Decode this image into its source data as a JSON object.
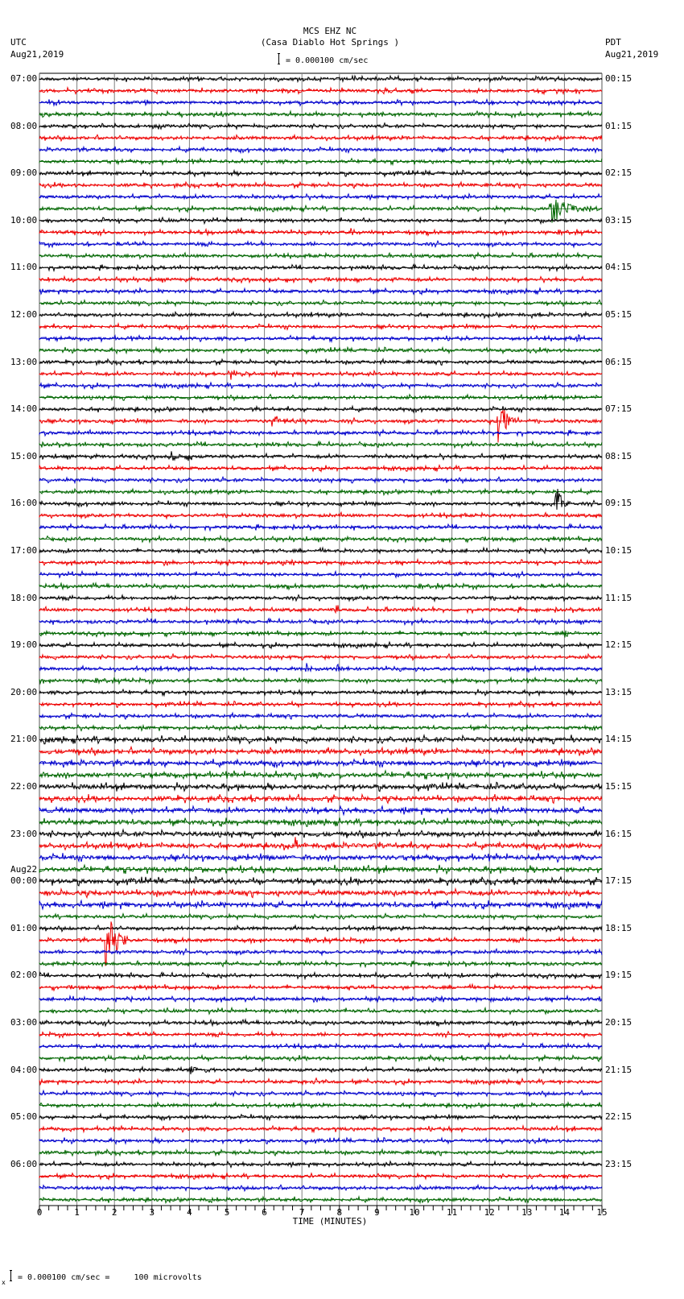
{
  "header": {
    "station": "MCS EHZ NC",
    "location": "(Casa Diablo Hot Springs )",
    "scale_text": "= 0.000100 cm/sec",
    "left_tz": "UTC",
    "left_date": "Aug21,2019",
    "right_tz": "PDT",
    "right_date": "Aug21,2019"
  },
  "footer": {
    "scale_text": "= 0.000100 cm/sec =     100 microvolts",
    "prefix": "x"
  },
  "colors": {
    "trace_cycle": [
      "#000000",
      "#ee0000",
      "#0000cc",
      "#006600"
    ],
    "grid": "#808080",
    "axis": "#000000"
  },
  "chart_data": {
    "type": "line",
    "title": "MCS EHZ NC (Casa Diablo Hot Springs )",
    "subtitle": "= 0.000100 cm/sec",
    "xlabel": "TIME (MINUTES)",
    "ylabel": "",
    "xlim": [
      0,
      15
    ],
    "x_ticks": [
      0,
      1,
      2,
      3,
      4,
      5,
      6,
      7,
      8,
      9,
      10,
      11,
      12,
      13,
      14,
      15
    ],
    "minor_ticks_per_minute": 4,
    "grid": "vertical lines every minute",
    "traces_per_hour": 4,
    "trace_minutes": 15,
    "left_labels_utc": [
      {
        "row": 0,
        "text": "07:00"
      },
      {
        "row": 4,
        "text": "08:00"
      },
      {
        "row": 8,
        "text": "09:00"
      },
      {
        "row": 12,
        "text": "10:00"
      },
      {
        "row": 16,
        "text": "11:00"
      },
      {
        "row": 20,
        "text": "12:00"
      },
      {
        "row": 24,
        "text": "13:00"
      },
      {
        "row": 28,
        "text": "14:00"
      },
      {
        "row": 32,
        "text": "15:00"
      },
      {
        "row": 36,
        "text": "16:00"
      },
      {
        "row": 40,
        "text": "17:00"
      },
      {
        "row": 44,
        "text": "18:00"
      },
      {
        "row": 48,
        "text": "19:00"
      },
      {
        "row": 52,
        "text": "20:00"
      },
      {
        "row": 56,
        "text": "21:00"
      },
      {
        "row": 60,
        "text": "22:00"
      },
      {
        "row": 64,
        "text": "23:00"
      },
      {
        "row": 68,
        "text": "00:00",
        "date": "Aug22"
      },
      {
        "row": 72,
        "text": "01:00"
      },
      {
        "row": 76,
        "text": "02:00"
      },
      {
        "row": 80,
        "text": "03:00"
      },
      {
        "row": 84,
        "text": "04:00"
      },
      {
        "row": 88,
        "text": "05:00"
      },
      {
        "row": 92,
        "text": "06:00"
      }
    ],
    "right_labels_pdt": [
      {
        "row": 0,
        "text": "00:15"
      },
      {
        "row": 4,
        "text": "01:15"
      },
      {
        "row": 8,
        "text": "02:15"
      },
      {
        "row": 12,
        "text": "03:15"
      },
      {
        "row": 16,
        "text": "04:15"
      },
      {
        "row": 20,
        "text": "05:15"
      },
      {
        "row": 24,
        "text": "06:15"
      },
      {
        "row": 28,
        "text": "07:15"
      },
      {
        "row": 32,
        "text": "08:15"
      },
      {
        "row": 36,
        "text": "09:15"
      },
      {
        "row": 40,
        "text": "10:15"
      },
      {
        "row": 44,
        "text": "11:15"
      },
      {
        "row": 48,
        "text": "12:15"
      },
      {
        "row": 52,
        "text": "13:15"
      },
      {
        "row": 56,
        "text": "14:15"
      },
      {
        "row": 60,
        "text": "15:15"
      },
      {
        "row": 64,
        "text": "16:15"
      },
      {
        "row": 68,
        "text": "17:15"
      },
      {
        "row": 72,
        "text": "18:15"
      },
      {
        "row": 76,
        "text": "19:15"
      },
      {
        "row": 80,
        "text": "20:15"
      },
      {
        "row": 84,
        "text": "21:15"
      },
      {
        "row": 88,
        "text": "22:15"
      },
      {
        "row": 92,
        "text": "23:15"
      }
    ],
    "total_traces": 96,
    "events": [
      {
        "row": 11,
        "minute": 13.6,
        "amp": 22,
        "dur": 1.3,
        "note": "green event ~09:45 UTC"
      },
      {
        "row": 13,
        "minute": 8.3,
        "amp": 6,
        "dur": 0.3
      },
      {
        "row": 17,
        "minute": 9.4,
        "amp": 5,
        "dur": 0.2
      },
      {
        "row": 22,
        "minute": 14.3,
        "amp": 6,
        "dur": 0.7
      },
      {
        "row": 22,
        "minute": 11.4,
        "amp": 4,
        "dur": 0.2
      },
      {
        "row": 25,
        "minute": 5.1,
        "amp": 7,
        "dur": 0.6
      },
      {
        "row": 25,
        "minute": 5.5,
        "amp": 7,
        "dur": 0.3
      },
      {
        "row": 29,
        "minute": 12.2,
        "amp": 40,
        "dur": 0.6,
        "note": "large red event ~14:15 UTC"
      },
      {
        "row": 29,
        "minute": 6.2,
        "amp": 8,
        "dur": 1.0
      },
      {
        "row": 32,
        "minute": 3.5,
        "amp": 8,
        "dur": 0.3
      },
      {
        "row": 32,
        "minute": 3.95,
        "amp": 6,
        "dur": 0.2
      },
      {
        "row": 36,
        "minute": 13.75,
        "amp": 36,
        "dur": 0.4,
        "note": "large black event ~16:00 UTC"
      },
      {
        "row": 45,
        "minute": 7.9,
        "amp": 7,
        "dur": 0.3
      },
      {
        "row": 47,
        "minute": 14.0,
        "amp": 4,
        "dur": 0.5
      },
      {
        "row": 50,
        "minute": 7.1,
        "amp": 7,
        "dur": 0.4
      },
      {
        "row": 50,
        "minute": 7.9,
        "amp": 7,
        "dur": 0.3
      },
      {
        "row": 51,
        "minute": 6.1,
        "amp": 4,
        "dur": 0.2
      },
      {
        "row": 56,
        "minute": 14.1,
        "amp": 5,
        "dur": 0.3
      },
      {
        "row": 65,
        "minute": 6.8,
        "amp": 11,
        "dur": 0.3
      },
      {
        "row": 73,
        "minute": 1.75,
        "amp": 40,
        "dur": 0.8,
        "note": "large red spikes ~01:15 UTC Aug22"
      },
      {
        "row": 76,
        "minute": 11.5,
        "amp": 4,
        "dur": 0.3
      },
      {
        "row": 83,
        "minute": 1.7,
        "amp": 4,
        "dur": 0.2
      },
      {
        "row": 84,
        "minute": 4.0,
        "amp": 7,
        "dur": 0.3
      },
      {
        "row": 84,
        "minute": 4.4,
        "amp": 7,
        "dur": 0.3
      },
      {
        "row": 85,
        "minute": 7.0,
        "amp": 5,
        "dur": 0.9
      },
      {
        "row": 93,
        "minute": 13.9,
        "amp": 6,
        "dur": 0.3
      },
      {
        "row": 95,
        "minute": 4.5,
        "amp": 8,
        "dur": 0.2
      }
    ]
  }
}
